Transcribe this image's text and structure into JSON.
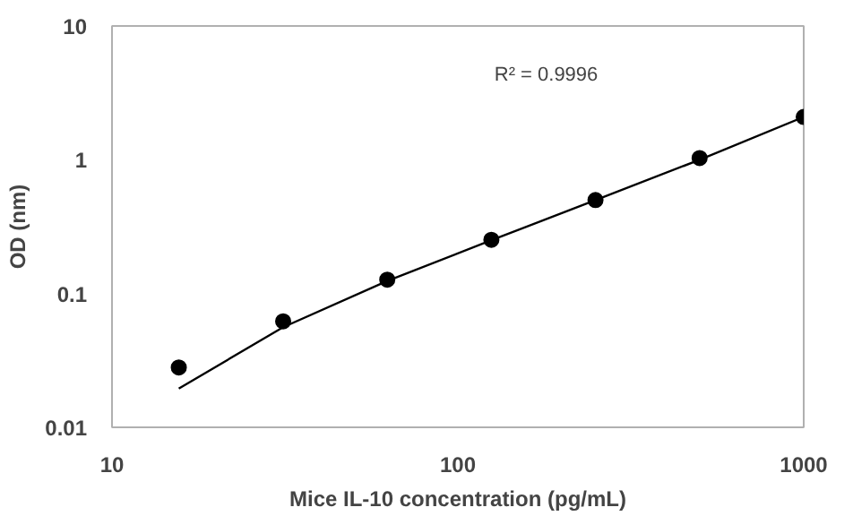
{
  "chart_data": {
    "type": "scatter",
    "xlabel": "Mice IL-10 concentration (pg/mL)",
    "ylabel": "OD (nm)",
    "log": "xy",
    "xlim": [
      10,
      1000
    ],
    "ylim": [
      0.01,
      10
    ],
    "xticks": [
      10,
      100,
      1000
    ],
    "yticks": [
      0.01,
      0.1,
      1,
      10
    ],
    "grid": false,
    "marker": "circle",
    "annotations": [
      "R² = 0.9996"
    ],
    "series": [
      {
        "color": "#000000",
        "x": [
          15.6,
          31.25,
          62.5,
          125,
          250,
          500,
          1000
        ],
        "values": [
          0.028,
          0.062,
          0.127,
          0.252,
          0.5,
          1.03,
          2.09
        ]
      },
      {
        "type": "line",
        "marker": "none",
        "color": "#000000",
        "line_style": "solid",
        "x": [
          15.6,
          31.25,
          62.5,
          125,
          250,
          500,
          1000
        ],
        "values": [
          0.0195,
          0.056,
          0.124,
          0.25,
          0.5,
          1.0,
          2.09
        ]
      }
    ]
  }
}
